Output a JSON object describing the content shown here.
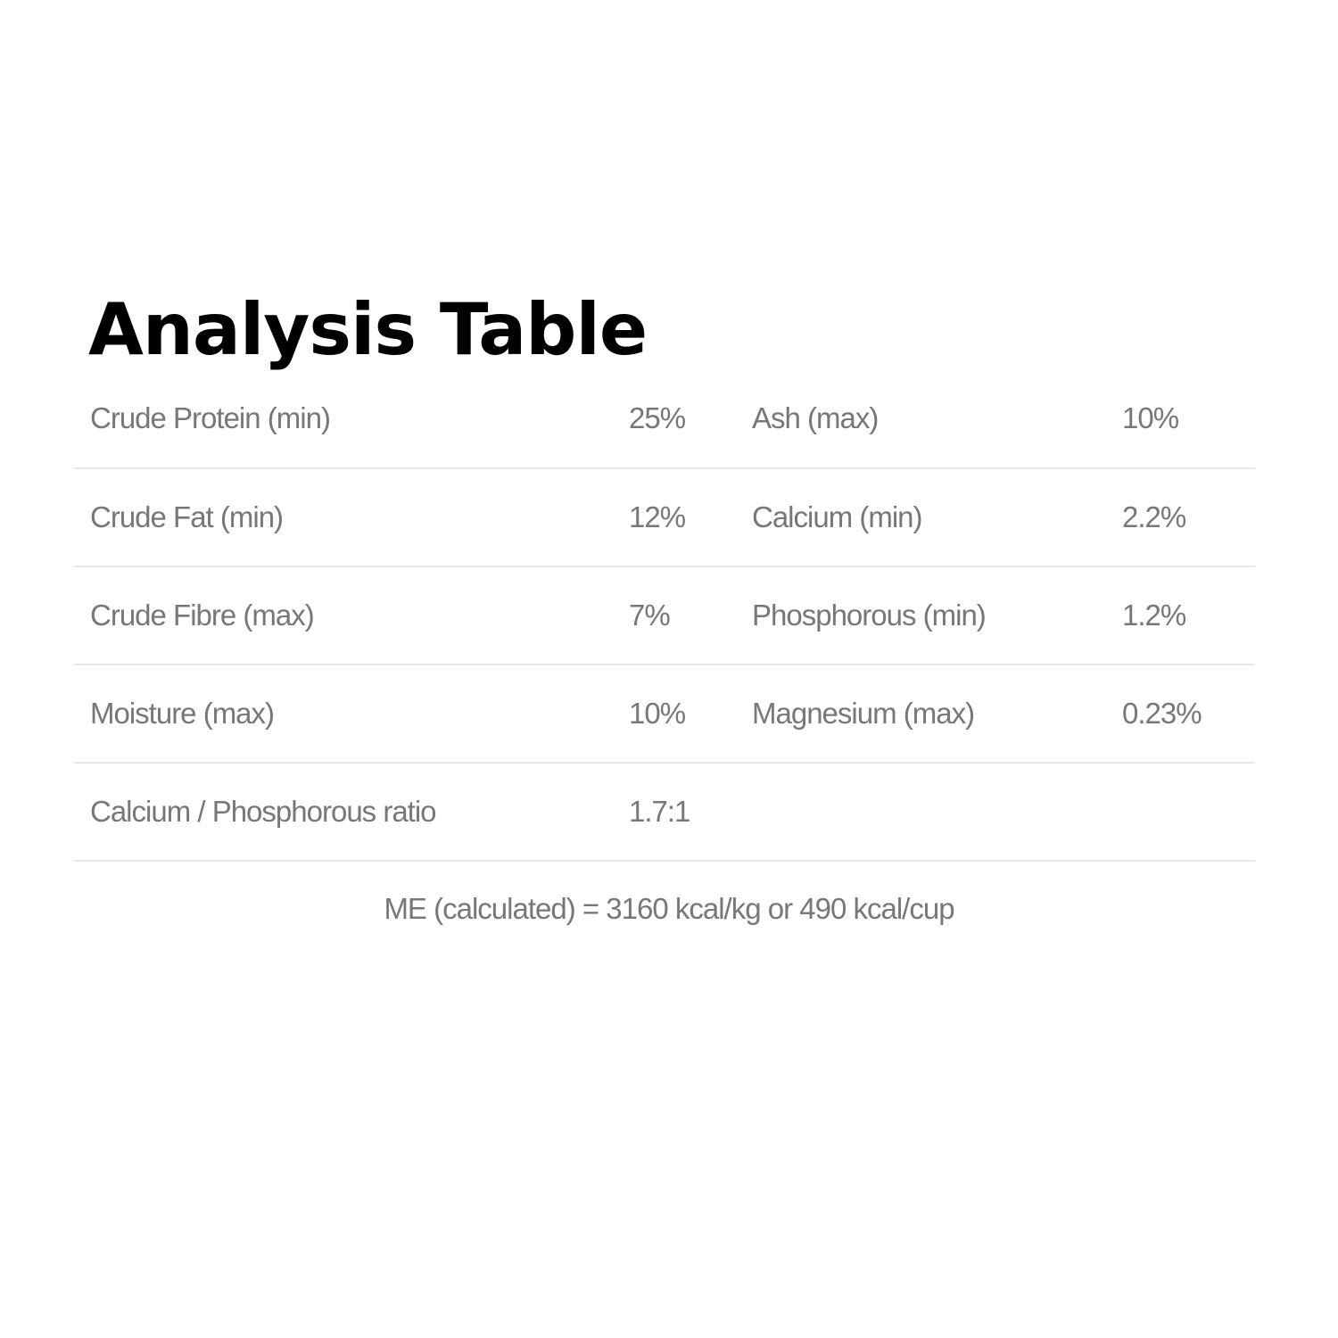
{
  "title": "Analysis Table",
  "rows": [
    {
      "label1": "Crude Protein (min)",
      "value1": "25%",
      "label2": "Ash (max)",
      "value2": "10%"
    },
    {
      "label1": "Crude Fat (min)",
      "value1": "12%",
      "label2": "Calcium (min)",
      "value2": "2.2%"
    },
    {
      "label1": "Crude Fibre (max)",
      "value1": "7%",
      "label2": "Phosphorous (min)",
      "value2": "1.2%"
    },
    {
      "label1": "Moisture (max)",
      "value1": "10%",
      "label2": "Magnesium (max)",
      "value2": "0.23%"
    },
    {
      "label1": "Calcium / Phosphorous ratio",
      "value1": "1.7:1",
      "label2": "",
      "value2": ""
    }
  ],
  "footer": "ME (calculated) = 3160 kcal/kg or 490 kcal/cup",
  "colors": {
    "text": "#777777",
    "divider": "#e6e6e6",
    "title": "#000000"
  }
}
